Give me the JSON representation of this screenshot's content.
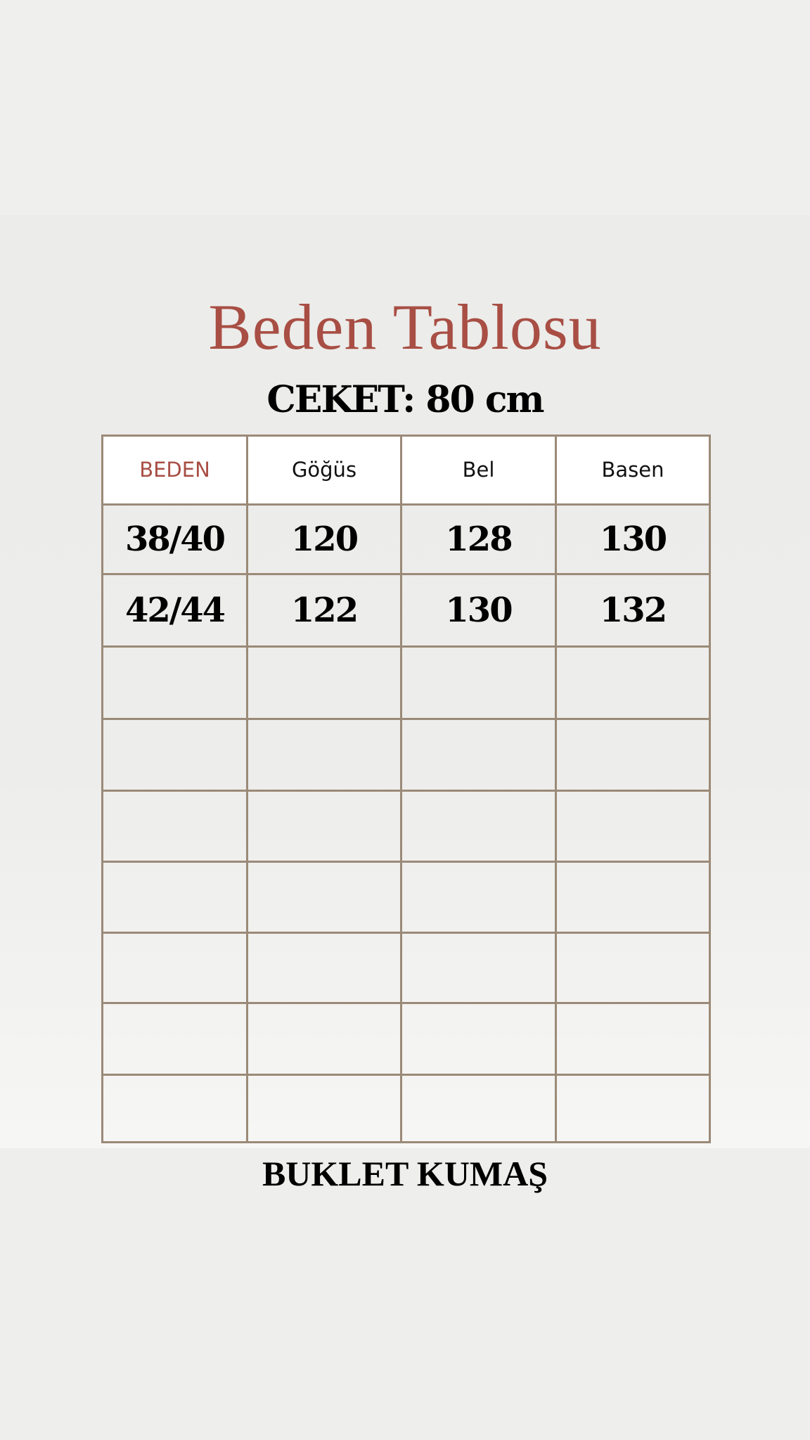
{
  "title": "Beden Tablosu",
  "subtitle": "CEKET: 80 cm",
  "table": {
    "headers": [
      "BEDEN",
      "Göğüs",
      "Bel",
      "Basen"
    ],
    "rows": [
      [
        "38/40",
        "120",
        "128",
        "130"
      ],
      [
        "42/44",
        "122",
        "130",
        "132"
      ],
      [
        "",
        "",
        "",
        ""
      ],
      [
        "",
        "",
        "",
        ""
      ],
      [
        "",
        "",
        "",
        ""
      ],
      [
        "",
        "",
        "",
        ""
      ],
      [
        "",
        "",
        "",
        ""
      ],
      [
        "",
        "",
        "",
        ""
      ],
      [
        "",
        "",
        "",
        ""
      ]
    ]
  },
  "footer": "BUKLET KUMAŞ",
  "colors": {
    "title": "#a84e44",
    "border": "#9b8a78"
  }
}
